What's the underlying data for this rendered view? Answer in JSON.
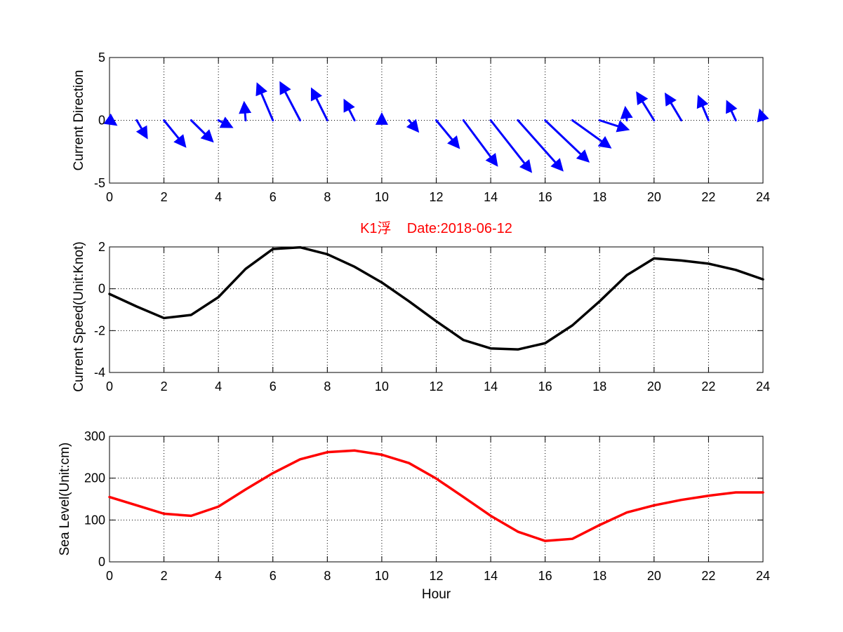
{
  "chart_data": [
    {
      "type": "quiver",
      "ylabel": "Current Direction",
      "xlim": [
        0,
        24
      ],
      "ylim": [
        -5,
        5
      ],
      "xticks": [
        0,
        2,
        4,
        6,
        8,
        10,
        12,
        14,
        16,
        18,
        20,
        22,
        24
      ],
      "yticks": [
        -5,
        0,
        5
      ],
      "grid": true,
      "color": "#0000ff",
      "x": [
        0,
        1,
        2,
        3,
        4,
        5,
        6,
        7,
        8,
        9,
        10,
        11,
        12,
        13,
        14,
        15,
        16,
        17,
        18,
        19,
        20,
        21,
        22,
        23,
        24
      ],
      "u": [
        0.2,
        0.35,
        0.75,
        0.75,
        0.45,
        -0.05,
        -0.55,
        -0.7,
        -0.55,
        -0.35,
        0,
        0.3,
        0.8,
        1.2,
        1.45,
        1.6,
        1.55,
        1.35,
        1.0,
        -0.05,
        -0.6,
        -0.55,
        -0.35,
        -0.3,
        -0.1
      ],
      "v": [
        -0.3,
        -1.3,
        -2.0,
        -1.6,
        -0.5,
        1.3,
        2.8,
        2.9,
        2.4,
        1.5,
        0.4,
        -0.8,
        -2.1,
        -3.5,
        -4.0,
        -3.9,
        -3.2,
        -2.1,
        -0.7,
        0.9,
        2.1,
        2.0,
        1.8,
        1.4,
        0.7
      ]
    },
    {
      "type": "line",
      "title": "K1浮    Date:2018-06-12",
      "ylabel": "Current Speed(Unit:Knot)",
      "xlim": [
        0,
        24
      ],
      "ylim": [
        -4,
        2
      ],
      "xticks": [
        0,
        2,
        4,
        6,
        8,
        10,
        12,
        14,
        16,
        18,
        20,
        22,
        24
      ],
      "yticks": [
        -4,
        -2,
        0,
        2
      ],
      "grid": true,
      "color": "#000000",
      "x": [
        0,
        1,
        2,
        3,
        4,
        5,
        6,
        7,
        8,
        9,
        10,
        11,
        12,
        13,
        14,
        15,
        16,
        17,
        18,
        19,
        20,
        21,
        22,
        23,
        24
      ],
      "y": [
        -0.25,
        -0.85,
        -1.4,
        -1.25,
        -0.4,
        0.95,
        1.9,
        1.98,
        1.65,
        1.05,
        0.3,
        -0.6,
        -1.55,
        -2.45,
        -2.85,
        -2.9,
        -2.6,
        -1.75,
        -0.6,
        0.65,
        1.45,
        1.35,
        1.2,
        0.9,
        0.45
      ]
    },
    {
      "type": "line",
      "xlabel": "Hour",
      "ylabel": "Sea Level(Unit:cm)",
      "xlim": [
        0,
        24
      ],
      "ylim": [
        0,
        300
      ],
      "xticks": [
        0,
        2,
        4,
        6,
        8,
        10,
        12,
        14,
        16,
        18,
        20,
        22,
        24
      ],
      "yticks": [
        0,
        100,
        200,
        300
      ],
      "grid": true,
      "color": "#ff0000",
      "x": [
        0,
        1,
        2,
        3,
        4,
        5,
        6,
        7,
        8,
        9,
        10,
        11,
        12,
        13,
        14,
        15,
        16,
        17,
        18,
        19,
        20,
        21,
        22,
        23,
        24
      ],
      "y": [
        155,
        135,
        115,
        110,
        132,
        173,
        212,
        245,
        262,
        266,
        256,
        236,
        199,
        155,
        110,
        72,
        50,
        55,
        88,
        118,
        135,
        148,
        158,
        166,
        166
      ]
    }
  ]
}
